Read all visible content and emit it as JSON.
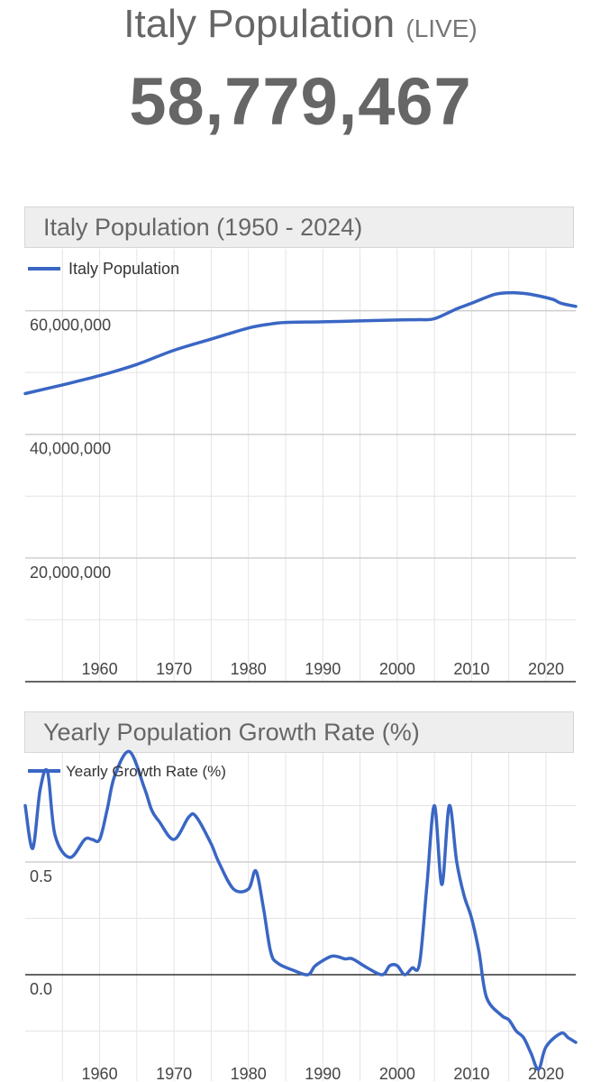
{
  "header": {
    "title": "Italy Population",
    "live_label": "(LIVE)",
    "live_count": "58,779,467"
  },
  "colors": {
    "line": "#3a66c4",
    "grid": "#e4e4e4",
    "text": "#666666"
  },
  "chart_data": [
    {
      "type": "line",
      "title": "Italy Population (1950 - 2024)",
      "series": [
        {
          "name": "Italy Population",
          "x": [
            1950,
            1955,
            1960,
            1965,
            1970,
            1975,
            1980,
            1983,
            1985,
            1990,
            1995,
            2000,
            2003,
            2005,
            2008,
            2010,
            2013,
            2015,
            2017,
            2019,
            2021,
            2022,
            2024
          ],
          "values": [
            46600000,
            48000000,
            49500000,
            51300000,
            53600000,
            55400000,
            57200000,
            57850000,
            58100000,
            58200000,
            58350000,
            58500000,
            58550000,
            58700000,
            60300000,
            61200000,
            62600000,
            62900000,
            62800000,
            62400000,
            61800000,
            61200000,
            60700000
          ]
        }
      ],
      "xticks": [
        "1960",
        "1970",
        "1980",
        "1990",
        "2000",
        "2010",
        "2020"
      ],
      "yticks": [
        "20,000,000",
        "40,000,000",
        "60,000,000"
      ],
      "xlim": [
        1950,
        2024
      ],
      "ylim": [
        0,
        70000000
      ],
      "legend": "top-left",
      "grid": true
    },
    {
      "type": "line",
      "title": "Yearly Population Growth Rate (%)",
      "series": [
        {
          "name": "Yearly Growth Rate (%)",
          "x": [
            1950,
            1951,
            1952,
            1953,
            1954,
            1956,
            1958,
            1959,
            1960,
            1961,
            1962,
            1964,
            1966,
            1967,
            1968,
            1970,
            1972,
            1973,
            1975,
            1976,
            1978,
            1980,
            1981,
            1982,
            1983,
            1984,
            1986,
            1988,
            1989,
            1991,
            1992,
            1993,
            1994,
            1996,
            1998,
            1999,
            2000,
            2001,
            2002,
            2003,
            2004,
            2005,
            2006,
            2007,
            2008,
            2009,
            2010,
            2011,
            2012,
            2014,
            2015,
            2016,
            2017,
            2018,
            2019,
            2020,
            2022,
            2023,
            2024
          ],
          "values": [
            0.75,
            0.56,
            0.82,
            0.9,
            0.62,
            0.52,
            0.6,
            0.6,
            0.6,
            0.73,
            0.88,
            0.99,
            0.83,
            0.73,
            0.68,
            0.6,
            0.7,
            0.7,
            0.58,
            0.5,
            0.38,
            0.38,
            0.46,
            0.3,
            0.1,
            0.05,
            0.02,
            0.0,
            0.04,
            0.08,
            0.08,
            0.07,
            0.07,
            0.03,
            0.0,
            0.04,
            0.04,
            0.0,
            0.03,
            0.05,
            0.4,
            0.75,
            0.4,
            0.75,
            0.5,
            0.35,
            0.25,
            0.1,
            -0.1,
            -0.18,
            -0.2,
            -0.25,
            -0.28,
            -0.35,
            -0.42,
            -0.32,
            -0.26,
            -0.28,
            -0.3
          ]
        }
      ],
      "xticks": [
        "1960",
        "1970",
        "1980",
        "1990",
        "2000",
        "2010",
        "2020"
      ],
      "yticks": [
        "0.0",
        "0.5"
      ],
      "xlim": [
        1950,
        2024
      ],
      "legend": "top-left",
      "grid": true
    }
  ]
}
